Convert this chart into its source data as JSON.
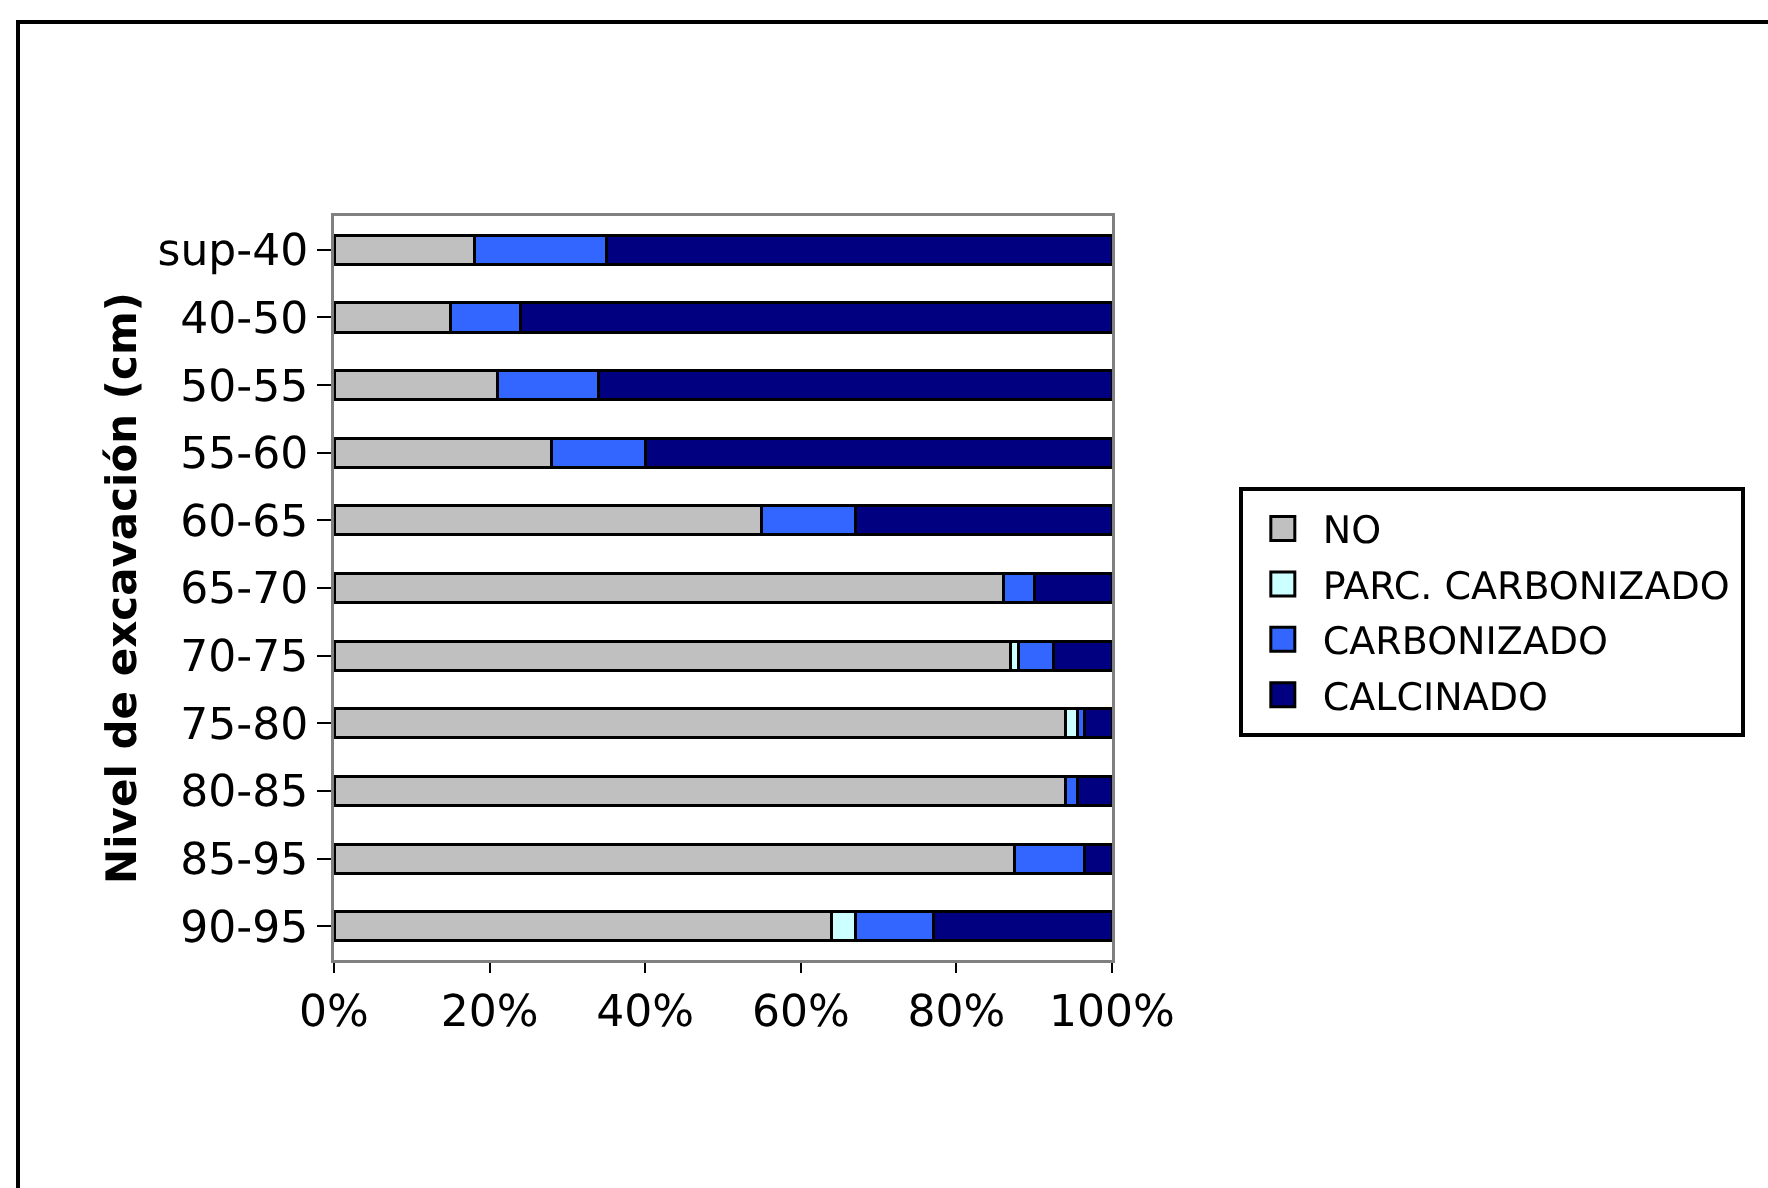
{
  "chart_data": {
    "type": "bar",
    "orientation": "horizontal",
    "stacked": true,
    "ylabel": "Nivel de excavación (cm)",
    "categories": [
      "sup-40",
      "40-50",
      "50-55",
      "55-60",
      "60-65",
      "65-70",
      "70-75",
      "75-80",
      "80-85",
      "85-95",
      "90-95"
    ],
    "series": [
      {
        "name": "NO",
        "color": "#c0c0c0",
        "values": [
          18,
          15,
          21,
          28,
          55,
          86,
          87,
          94,
          94,
          87.5,
          64
        ]
      },
      {
        "name": "PARC. CARBONIZADO",
        "color": "#ccffff",
        "values": [
          0,
          0,
          0,
          0,
          0,
          0,
          1,
          1.5,
          0,
          0,
          3
        ]
      },
      {
        "name": "CARBONIZADO",
        "color": "#3366ff",
        "values": [
          17,
          9,
          13,
          12,
          12,
          4,
          4.5,
          1,
          1.5,
          9,
          10
        ]
      },
      {
        "name": "CALCINADO",
        "color": "#000080",
        "values": [
          65,
          76,
          66,
          60,
          33,
          10,
          7.5,
          3.5,
          4.5,
          3.5,
          23
        ]
      }
    ],
    "xlim": [
      0,
      100
    ],
    "xticks": [
      {
        "value": 0,
        "label": "0%"
      },
      {
        "value": 20,
        "label": "20%"
      },
      {
        "value": 40,
        "label": "40%"
      },
      {
        "value": 60,
        "label": "60%"
      },
      {
        "value": 80,
        "label": "80%"
      },
      {
        "value": 100,
        "label": "100%"
      }
    ],
    "legend": "right",
    "grid": false
  }
}
